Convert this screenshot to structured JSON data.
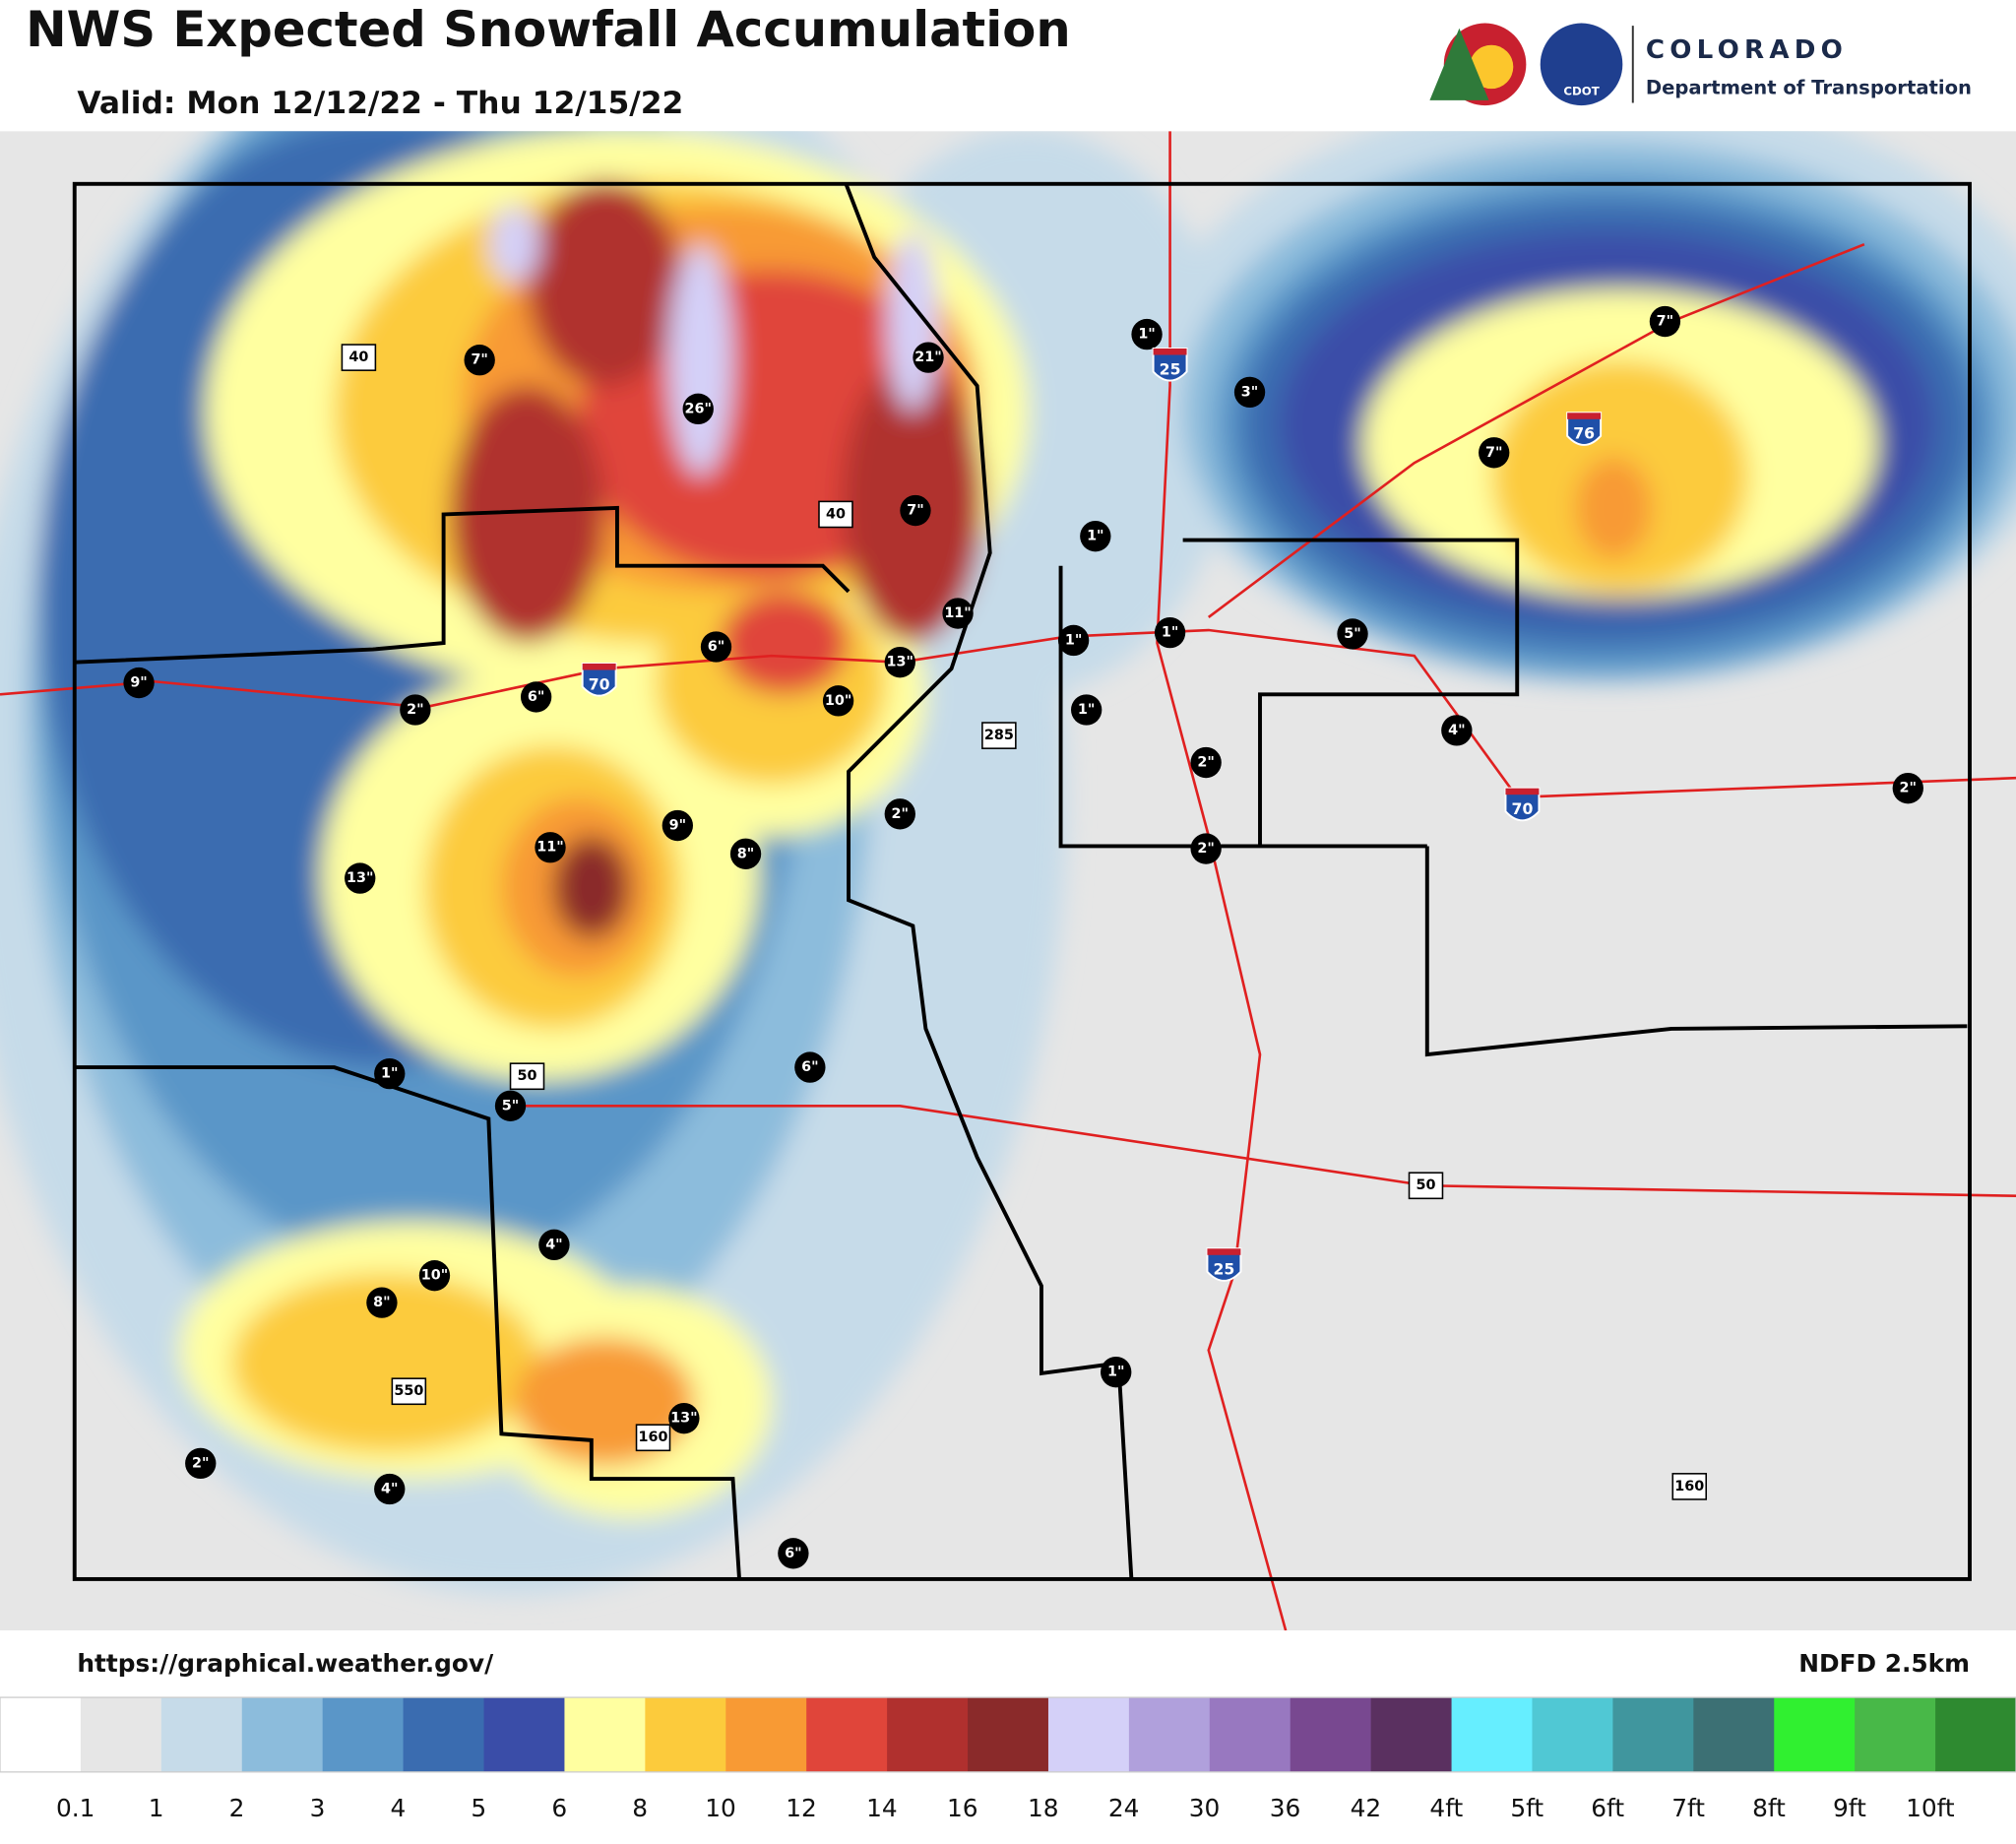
{
  "header": {
    "title": "NWS Expected Snowfall Accumulation",
    "subtitle": "Valid: Mon 12/12/22 - Thu 12/15/22"
  },
  "logo": {
    "state": "COLORADO",
    "agency": "Department of Transportation",
    "badge": "CDOT"
  },
  "snow_labels": [
    "7\"",
    "26\"",
    "21\"",
    "1\"",
    "3\"",
    "7\"",
    "7\"",
    "7\"",
    "1\"",
    "11\"",
    "1\"",
    "1\"",
    "5\"",
    "6\"",
    "13\"",
    "10\"",
    "9\"",
    "2\"",
    "6\"",
    "1\"",
    "2\"",
    "4\"",
    "2\"",
    "2\"",
    "9\"",
    "8\"",
    "11\"",
    "13\"",
    "2\"",
    "6\"",
    "1\"",
    "5\"",
    "4\"",
    "10\"",
    "8\"",
    "1\"",
    "13\"",
    "2\"",
    "4\"",
    "6\""
  ],
  "highways": {
    "interstate": [
      "25",
      "76",
      "70",
      "70",
      "25"
    ],
    "us": [
      "40",
      "40",
      "285",
      "50",
      "50",
      "550",
      "160",
      "160"
    ]
  },
  "footer": {
    "url": "https://graphical.weather.gov/",
    "source": "NDFD 2.5km"
  },
  "legend": {
    "colors": [
      "#ffffff",
      "#e6e6e6",
      "#c6dbe9",
      "#8cbcdc",
      "#5a96c8",
      "#3a6cb0",
      "#3a4da8",
      "#ffffa0",
      "#fccb3c",
      "#f89a34",
      "#e0453a",
      "#b0302e",
      "#8a2a2a",
      "#d4d0f8",
      "#b0a0dc",
      "#9878c0",
      "#784890",
      "#5a3060",
      "#66eeff",
      "#50c8d4",
      "#40969e",
      "#3c7074",
      "#30f030",
      "#48b848",
      "#2e8a30"
    ],
    "labels": [
      "0.1",
      "1",
      "2",
      "3",
      "4",
      "5",
      "6",
      "8",
      "10",
      "12",
      "14",
      "16",
      "18",
      "24",
      "30",
      "36",
      "42",
      "4ft",
      "5ft",
      "6ft",
      "7ft",
      "8ft",
      "9ft",
      "10ft"
    ]
  }
}
